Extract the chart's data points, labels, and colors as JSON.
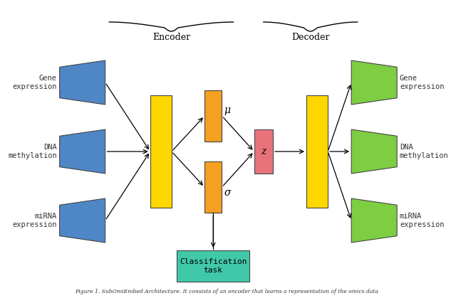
{
  "bg_color": "#ffffff",
  "blue_color": "#4f86c6",
  "yellow_color": "#ffd700",
  "orange_color": "#f5a020",
  "pink_color": "#e8737a",
  "green_color": "#7dce42",
  "teal_color": "#40c8a8",
  "encoder_label": "Encoder",
  "decoder_label": "Decoder",
  "input_labels": [
    "Gene\nexpression",
    "DNA\nmethylation",
    "miRNA\nexpression"
  ],
  "output_labels": [
    "Gene\nexpression",
    "DNA\nmethylation",
    "miRNA\nexpression"
  ],
  "mu_label": "μ",
  "sigma_label": "σ",
  "z_label": "z",
  "classification_label": "Classification\ntask",
  "caption": "Figure 1. SubOmiEmbed Architecture. It consists of an encoder that learns a representation of the omics data"
}
